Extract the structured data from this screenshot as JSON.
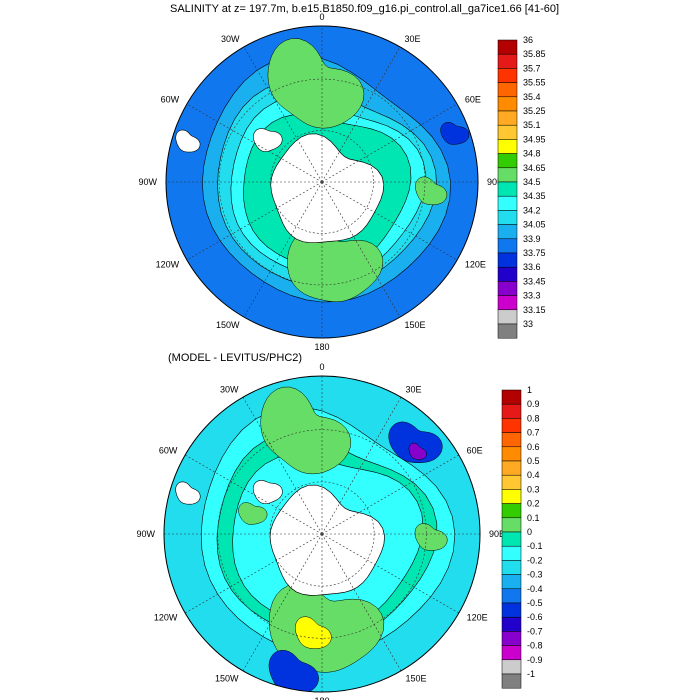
{
  "top_panel": {
    "title": "SALINITY at z= 197.7m, b.e15.B1850.f09_g16.pi_control.all_ga7ice1.66 [41-60]",
    "map_labels": [
      "0",
      "30E",
      "60E",
      "90E",
      "120E",
      "150E",
      "180",
      "150W",
      "120W",
      "90W",
      "60W",
      "30W"
    ],
    "colorbar": {
      "labels": [
        "36",
        "35.85",
        "35.7",
        "35.55",
        "35.4",
        "35.25",
        "35.1",
        "34.95",
        "34.8",
        "34.65",
        "34.5",
        "34.35",
        "34.2",
        "34.05",
        "33.9",
        "33.75",
        "33.6",
        "33.45",
        "33.3",
        "33.15",
        "33"
      ],
      "colors": [
        "#b30000",
        "#e61919",
        "#ff3300",
        "#ff6600",
        "#ff8c00",
        "#ffaa22",
        "#ffc833",
        "#ffff00",
        "#33cc00",
        "#66dd66",
        "#00e6b3",
        "#33ffff",
        "#22ddee",
        "#1ab0f0",
        "#1177ee",
        "#0033dd",
        "#2200cc",
        "#8800cc",
        "#cc00cc",
        "#cccccc",
        "#808080"
      ]
    }
  },
  "bottom_panel": {
    "title": "(MODEL - LEVITUS/PHC2)",
    "map_labels": [
      "0",
      "30E",
      "60E",
      "90E",
      "120E",
      "150E",
      "180",
      "150W",
      "120W",
      "90W",
      "60W",
      "30W"
    ],
    "colorbar": {
      "labels": [
        "1",
        "0.9",
        "0.8",
        "0.7",
        "0.6",
        "0.5",
        "0.4",
        "0.3",
        "0.2",
        "0.1",
        "0",
        "-0.1",
        "-0.2",
        "-0.3",
        "-0.4",
        "-0.5",
        "-0.6",
        "-0.7",
        "-0.8",
        "-0.9",
        "-1"
      ],
      "colors": [
        "#b30000",
        "#e61919",
        "#ff3300",
        "#ff6600",
        "#ff8c00",
        "#ffaa22",
        "#ffc833",
        "#ffff00",
        "#33cc00",
        "#66dd66",
        "#00e6b3",
        "#33ffff",
        "#22ddee",
        "#1ab0f0",
        "#1177ee",
        "#0033dd",
        "#2200cc",
        "#8800cc",
        "#cc00cc",
        "#cccccc",
        "#808080"
      ]
    }
  }
}
